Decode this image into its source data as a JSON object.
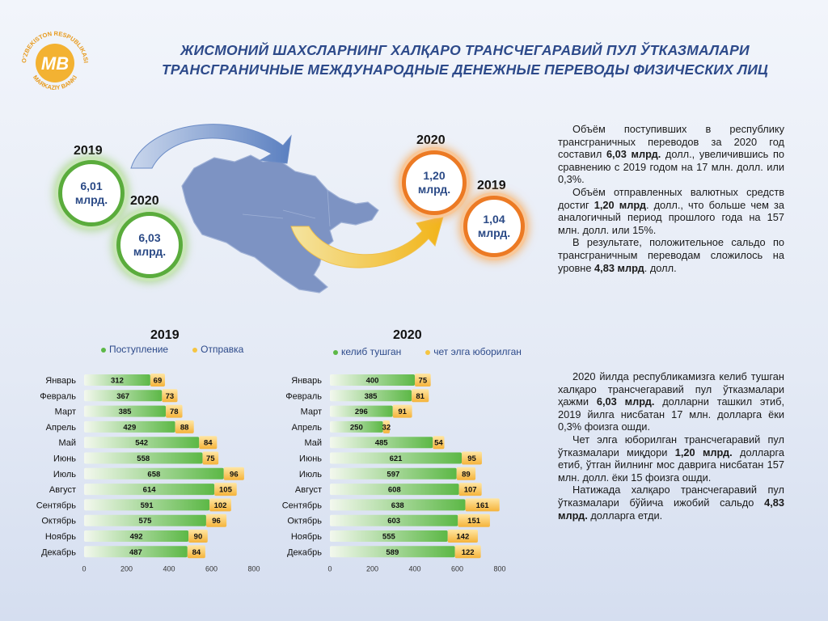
{
  "header": {
    "title_uz": "ЖИСМОНИЙ ШАХСЛАРНИНГ ХАЛҚАРО ТРАНСЧЕГАРАВИЙ ПУЛ ЎТКАЗМАЛАРИ",
    "title_ru": "ТРАНСГРАНИЧНЫЕ МЕЖДУНАРОДНЫЕ ДЕНЕЖНЫЕ ПЕРЕВОДЫ ФИЗИЧЕСКИХ ЛИЦ"
  },
  "logo": {
    "text_top": "O'ZBEKISTON RESPUBLIKASI",
    "text_bottom": "MARKAZIY BANKI",
    "mark": "MB"
  },
  "bubbles": {
    "inflow_2019": {
      "year": "2019",
      "value": "6,01\nмлрд."
    },
    "inflow_2020": {
      "year": "2020",
      "value": "6,03\nмлрд."
    },
    "outflow_2020": {
      "year": "2020",
      "value": "1,20\nмлрд."
    },
    "outflow_2019": {
      "year": "2019",
      "value": "1,04\nмлрд."
    }
  },
  "text_ru": {
    "p1_a": "Объём поступивших в республику трансграничных переводов за 2020 год составил ",
    "p1_b": "6,03 млрд.",
    "p1_c": " долл., увеличившись по сравнению с 2019 годом на 17 млн. долл. или 0,3%.",
    "p2_a": "Объём отправленных валютных средств достиг ",
    "p2_b": "1,20 млрд",
    "p2_c": ". долл., что больше чем за аналогичный период прошлого года на 157 млн. долл. или 15%.",
    "p3_a": "В результате, положительное сальдо по трансграничным переводам сложилось на уровне ",
    "p3_b": "4,83 млрд",
    "p3_c": ". долл."
  },
  "text_uz": {
    "p1_a": "2020 йилда республикамизга келиб тушган халқаро трансчегаравий пул ўтказмалари ҳажми ",
    "p1_b": "6,03 млрд.",
    "p1_c": " долларни ташкил этиб, 2019 йилга нисбатан 17 млн. долларга ёки 0,3% фоизга ошди.",
    "p2_a": "Чет элга юборилган трансчегаравий пул ўтказмалари миқдори ",
    "p2_b": "1,20 млрд.",
    "p2_c": " долларга етиб, ўтган йилнинг мос даврига нисбатан 157 млн. долл. ёки 15 фоизга ошди.",
    "p3_a": "Натижада халқаро трансчегаравий пул ўтказмалари бўйича ижобий сальдо ",
    "p3_b": "4,83 млрд.",
    "p3_c": " долларга етди."
  },
  "colors": {
    "green": "#5cb846",
    "orange": "#f5a623",
    "title": "#2d4a8a"
  },
  "chart_data": [
    {
      "type": "bar",
      "orientation": "horizontal",
      "stacked": true,
      "title": "2019",
      "categories": [
        "Январь",
        "Февраль",
        "Март",
        "Апрель",
        "Май",
        "Июнь",
        "Июль",
        "Август",
        "Сентябрь",
        "Октябрь",
        "Ноябрь",
        "Декабрь"
      ],
      "series": [
        {
          "name": "Поступление",
          "values": [
            312,
            367,
            385,
            429,
            542,
            558,
            658,
            614,
            591,
            575,
            492,
            487
          ]
        },
        {
          "name": "Отправка",
          "values": [
            69,
            73,
            78,
            88,
            84,
            75,
            96,
            105,
            102,
            96,
            90,
            84
          ]
        }
      ],
      "xticks": [
        "0",
        "200",
        "400",
        "600",
        "800"
      ],
      "xlim": [
        0,
        800
      ]
    },
    {
      "type": "bar",
      "orientation": "horizontal",
      "stacked": true,
      "title": "2020",
      "categories": [
        "Январь",
        "Февраль",
        "Март",
        "Апрель",
        "Май",
        "Июнь",
        "Июль",
        "Август",
        "Сентябрь",
        "Октябрь",
        "Ноябрь",
        "Декабрь"
      ],
      "series": [
        {
          "name": "келиб тушган",
          "values": [
            400,
            385,
            296,
            250,
            485,
            621,
            597,
            608,
            638,
            603,
            555,
            589
          ]
        },
        {
          "name": "чет элга юборилган",
          "values": [
            75,
            81,
            91,
            32,
            54,
            95,
            89,
            107,
            161,
            151,
            142,
            122
          ]
        }
      ],
      "xticks": [
        "0",
        "200",
        "400",
        "600",
        "800"
      ],
      "xlim": [
        0,
        800
      ]
    }
  ]
}
